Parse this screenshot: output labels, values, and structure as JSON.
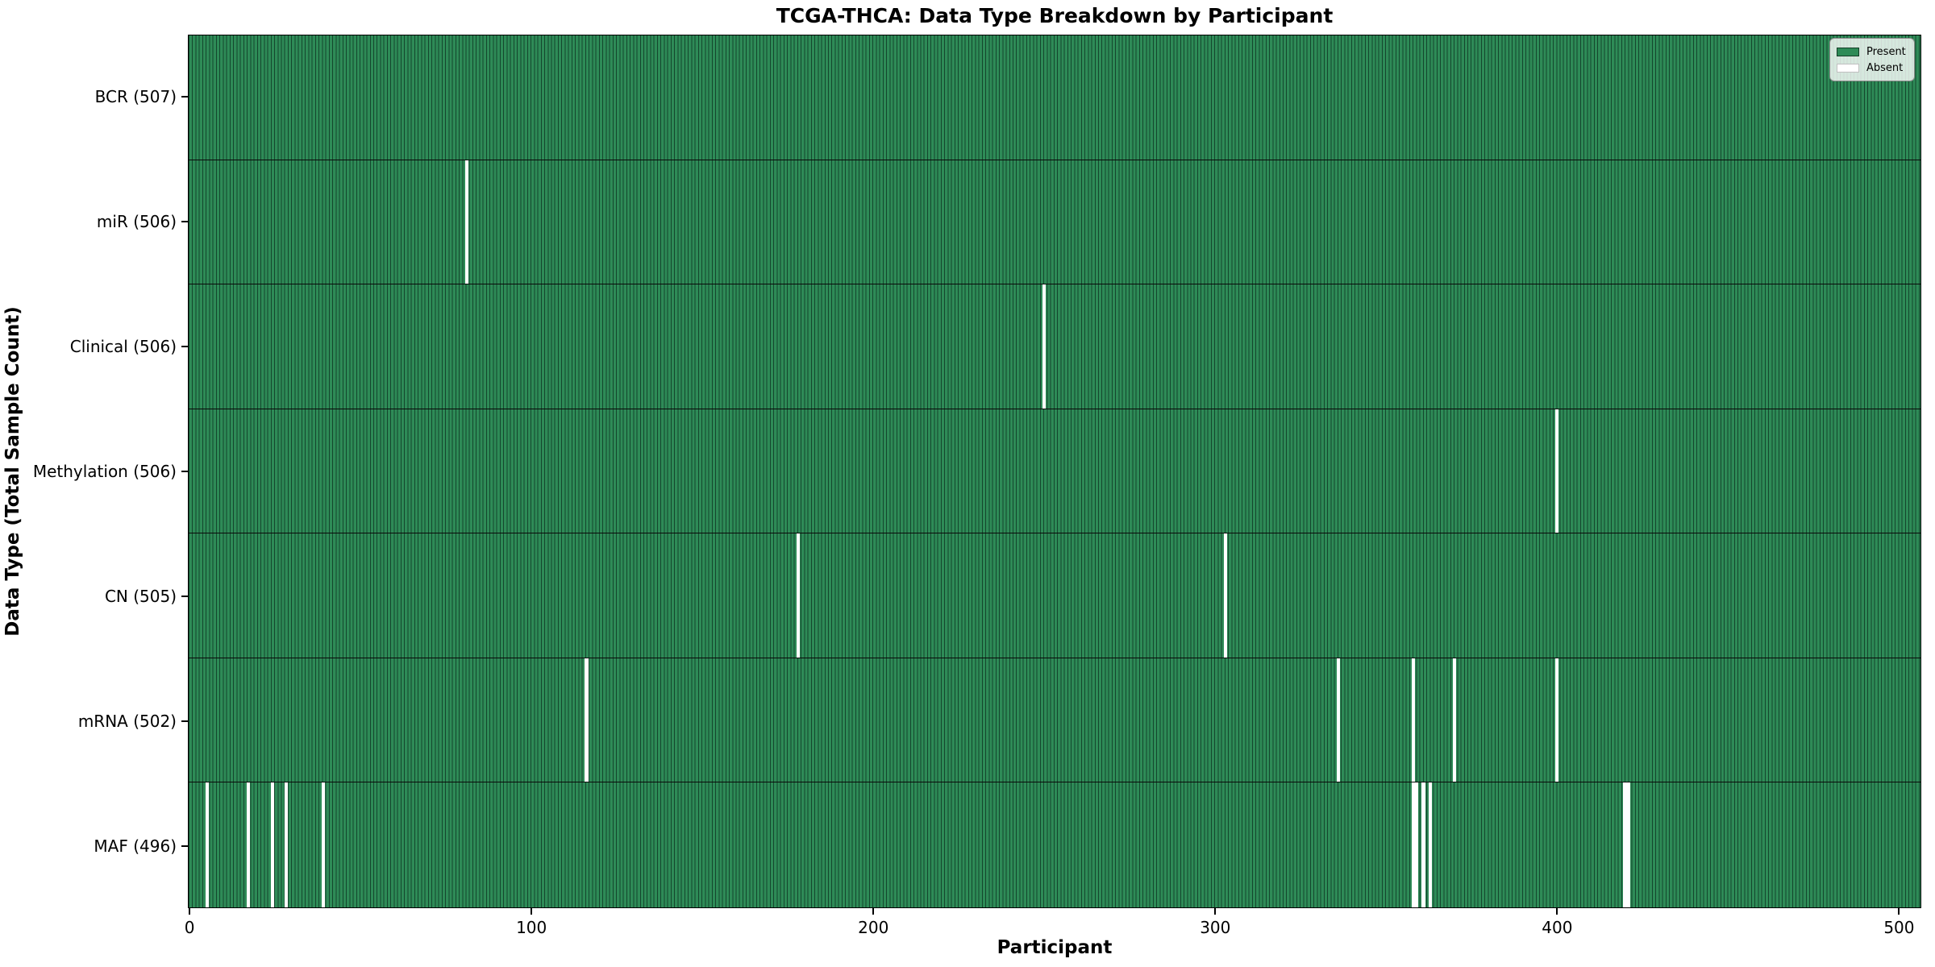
{
  "title": "TCGA-THCA: Data Type Breakdown by Participant",
  "xlabel": "Participant",
  "ylabel": "Data Type (Total Sample Count)",
  "legend": {
    "present_label": "Present",
    "absent_label": "Absent"
  },
  "colors": {
    "present": "#2e8b57",
    "absent": "#ffffff",
    "bar_edge": "#14462d",
    "row_separator": "#0a0a0a"
  },
  "chart_data": {
    "type": "heatmap",
    "title": "TCGA-THCA: Data Type Breakdown by Participant",
    "xlabel": "Participant",
    "ylabel": "Data Type (Total Sample Count)",
    "legend": [
      "Present",
      "Absent"
    ],
    "legend_position": "upper right",
    "grid": false,
    "total_participants": 507,
    "xlim": [
      -0.5,
      506.5
    ],
    "x_ticks": [
      0,
      100,
      200,
      300,
      400,
      500
    ],
    "rows": [
      {
        "data_type": "BCR",
        "label": "BCR (507)",
        "present_count": 507,
        "absent_participants": []
      },
      {
        "data_type": "miR",
        "label": "miR (506)",
        "present_count": 506,
        "absent_participants": [
          81
        ]
      },
      {
        "data_type": "Clinical",
        "label": "Clinical (506)",
        "present_count": 506,
        "absent_participants": [
          250
        ]
      },
      {
        "data_type": "Methylation",
        "label": "Methylation (506)",
        "present_count": 506,
        "absent_participants": [
          400
        ]
      },
      {
        "data_type": "CN",
        "label": "CN (505)",
        "present_count": 505,
        "absent_participants": [
          178,
          303
        ]
      },
      {
        "data_type": "mRNA",
        "label": "mRNA (502)",
        "present_count": 502,
        "absent_participants": [
          116,
          336,
          358,
          370,
          400
        ]
      },
      {
        "data_type": "MAF",
        "label": "MAF (496)",
        "present_count": 496,
        "absent_participants": [
          5,
          17,
          24,
          28,
          39,
          358,
          359,
          361,
          363,
          420,
          421
        ]
      }
    ]
  }
}
